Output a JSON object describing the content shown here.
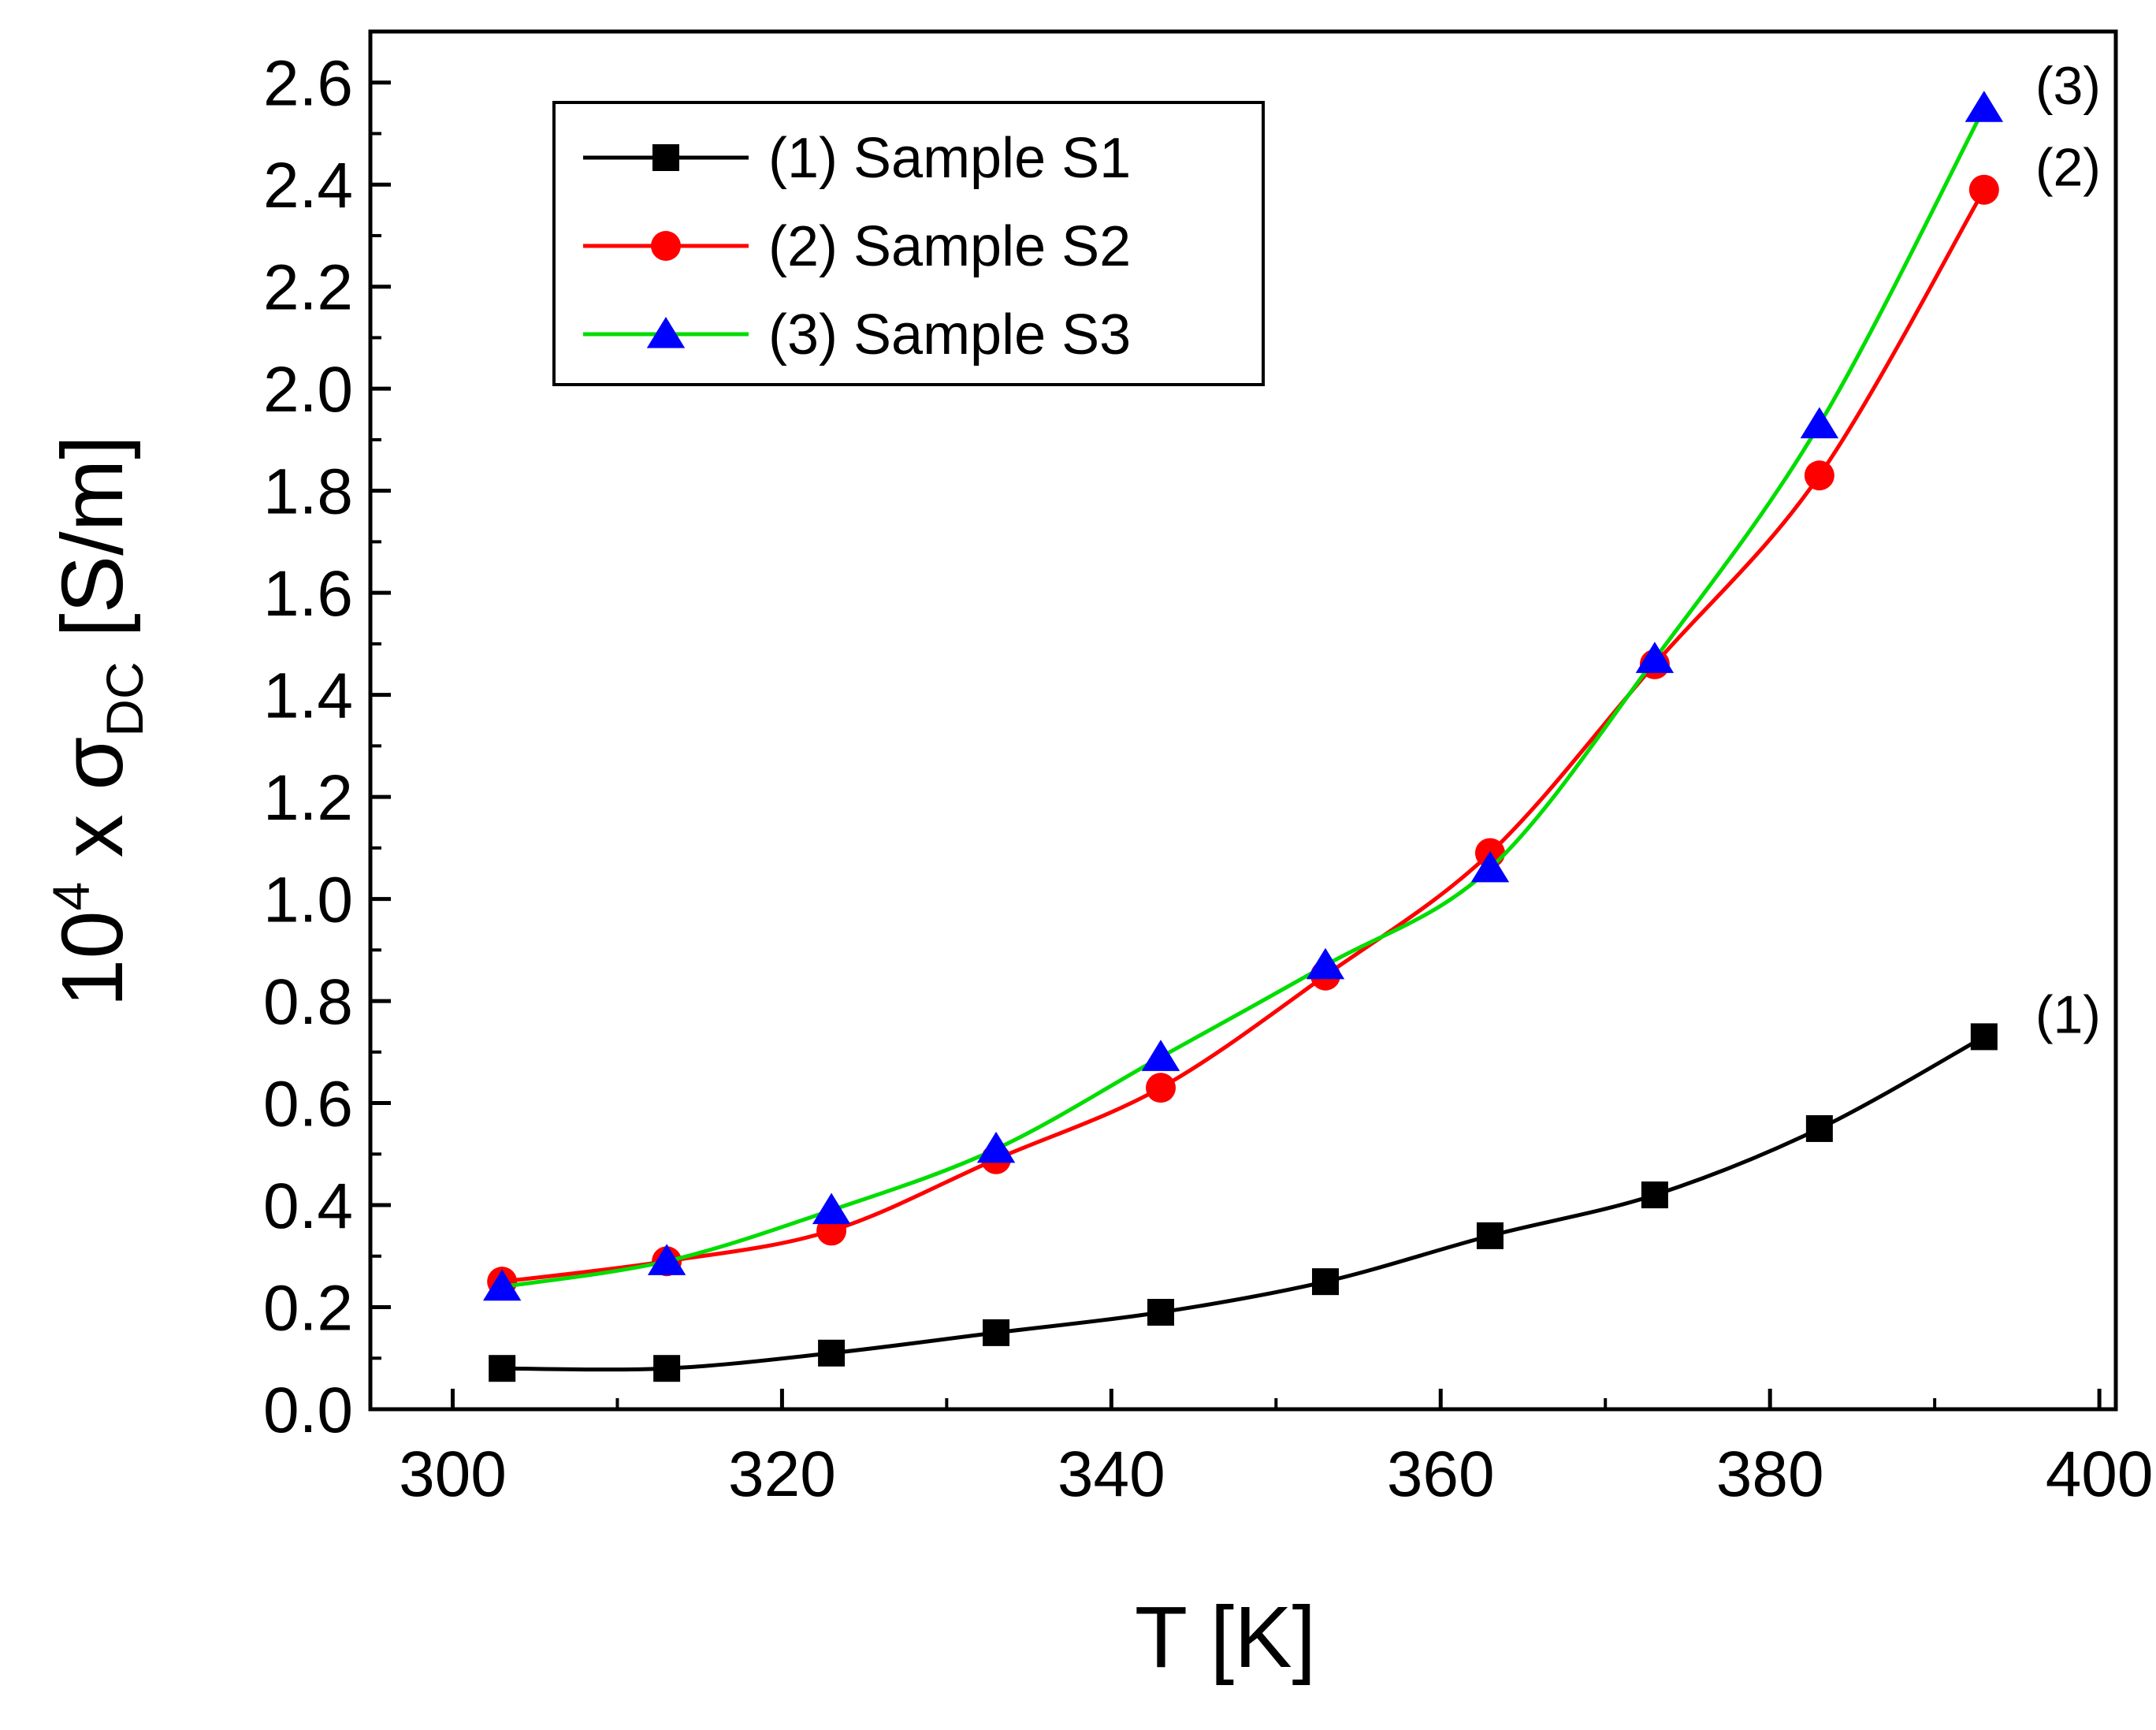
{
  "chart_data": {
    "type": "line",
    "title": "",
    "xlabel": "T [K]",
    "ylabel": {
      "base": "10",
      "exp": "4",
      "times": " x ",
      "symbol": "σ",
      "sub": "DC",
      "unit": " [S/m]"
    },
    "xlim": [
      295,
      401
    ],
    "ylim": [
      0.0,
      2.7
    ],
    "xticks": [
      "300",
      "320",
      "340",
      "360",
      "380",
      "400"
    ],
    "yticks": [
      "0.0",
      "0.2",
      "0.4",
      "0.6",
      "0.8",
      "1.0",
      "1.2",
      "1.4",
      "1.6",
      "1.8",
      "2.0",
      "2.2",
      "2.4",
      "2.6"
    ],
    "x": [
      303,
      313,
      323,
      333,
      343,
      353,
      363,
      373,
      383,
      393
    ],
    "series": [
      {
        "name": "(1) Sample S1",
        "label": "(1)",
        "color": "#000000",
        "marker": "square",
        "values": [
          0.08,
          0.08,
          0.11,
          0.15,
          0.19,
          0.25,
          0.34,
          0.42,
          0.55,
          0.73
        ]
      },
      {
        "name": "(2) Sample S2",
        "label": "(2)",
        "color": "#ff0000",
        "marker": "circle",
        "values": [
          0.25,
          0.29,
          0.35,
          0.49,
          0.63,
          0.85,
          1.09,
          1.46,
          1.83,
          2.39
        ]
      },
      {
        "name": "(3) Sample S3",
        "label": "(3)",
        "color": "#00dd00",
        "marker_color": "#0000ff",
        "marker": "triangle",
        "values": [
          0.24,
          0.29,
          0.39,
          0.51,
          0.69,
          0.87,
          1.06,
          1.47,
          1.93,
          2.55
        ]
      }
    ],
    "legend_position": "top-left"
  }
}
